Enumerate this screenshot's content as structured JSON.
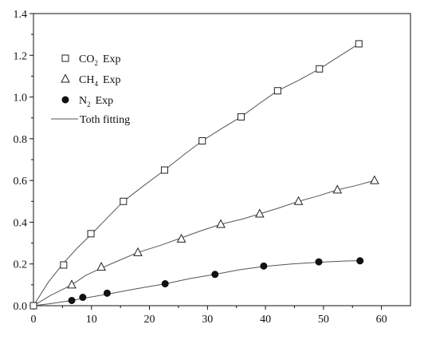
{
  "chart_data": {
    "type": "scatter",
    "title": "",
    "xlabel": "",
    "ylabel": "",
    "xlim": [
      0,
      65
    ],
    "ylim": [
      0,
      1.4
    ],
    "xticks": [
      0,
      10,
      20,
      30,
      40,
      50,
      60
    ],
    "yticks": [
      0.0,
      0.2,
      0.4,
      0.6,
      0.8,
      1.0,
      1.2,
      1.4
    ],
    "xtick_labels": [
      "0",
      "10",
      "20",
      "30",
      "40",
      "50",
      "60"
    ],
    "ytick_labels": [
      "0.0",
      "0.2",
      "0.4",
      "0.6",
      "0.8",
      "1.0",
      "1.2",
      "1.4"
    ],
    "grid": false,
    "legend_position": "top-left",
    "series": [
      {
        "name": "CO2 Exp",
        "legend_main": "CO",
        "legend_sub": "2",
        "legend_tail": "Exp",
        "marker": "square",
        "color": "#222222",
        "x": [
          0,
          5.2,
          9.9,
          15.5,
          22.6,
          29.1,
          35.8,
          42.1,
          49.3,
          56.1
        ],
        "y": [
          0.0,
          0.195,
          0.345,
          0.5,
          0.65,
          0.79,
          0.905,
          1.03,
          1.135,
          1.255
        ]
      },
      {
        "name": "CH4 Exp",
        "legend_main": "CH",
        "legend_sub": "4",
        "legend_tail": "Exp",
        "marker": "triangle",
        "color": "#222222",
        "x": [
          6.6,
          11.7,
          18.0,
          25.5,
          32.3,
          39.0,
          45.7,
          52.4,
          58.8
        ],
        "y": [
          0.1,
          0.185,
          0.255,
          0.32,
          0.39,
          0.44,
          0.5,
          0.555,
          0.6
        ]
      },
      {
        "name": "N2 Exp",
        "legend_main": "N",
        "legend_sub": "2",
        "legend_tail": "Exp",
        "marker": "circle",
        "color": "#111111",
        "x": [
          6.6,
          8.5,
          12.7,
          22.7,
          31.3,
          39.7,
          49.2,
          56.3
        ],
        "y": [
          0.025,
          0.04,
          0.06,
          0.105,
          0.15,
          0.19,
          0.21,
          0.215
        ]
      }
    ],
    "fit": {
      "name": "Toth fitting",
      "color": "#555555",
      "lines": [
        {
          "of": "CO2 Exp",
          "x": [
            0,
            2.5,
            5.2,
            7.5,
            9.9,
            12.7,
            15.5,
            19,
            22.6,
            26,
            29.1,
            32.5,
            35.8,
            39,
            42.1,
            45.7,
            49.3,
            52.7,
            56.1
          ],
          "y": [
            0.0,
            0.11,
            0.205,
            0.275,
            0.34,
            0.42,
            0.5,
            0.575,
            0.65,
            0.725,
            0.79,
            0.85,
            0.905,
            0.97,
            1.03,
            1.08,
            1.135,
            1.195,
            1.255
          ]
        },
        {
          "of": "CH4 Exp",
          "x": [
            0,
            3,
            6.6,
            9,
            11.7,
            15,
            18.0,
            22,
            25.5,
            29,
            32.3,
            36,
            39.0,
            42.5,
            45.7,
            49,
            52.4,
            55.5,
            58.8
          ],
          "y": [
            0.0,
            0.05,
            0.1,
            0.145,
            0.18,
            0.22,
            0.255,
            0.29,
            0.325,
            0.36,
            0.39,
            0.415,
            0.44,
            0.47,
            0.5,
            0.525,
            0.555,
            0.575,
            0.6
          ]
        },
        {
          "of": "N2 Exp",
          "x": [
            0,
            3,
            6.6,
            8.5,
            12.7,
            17.5,
            22.7,
            27,
            31.3,
            35.5,
            39.7,
            44.5,
            49.2,
            53,
            56.3
          ],
          "y": [
            0.0,
            0.01,
            0.025,
            0.035,
            0.055,
            0.08,
            0.105,
            0.13,
            0.15,
            0.172,
            0.188,
            0.2,
            0.208,
            0.213,
            0.216
          ]
        }
      ]
    }
  }
}
